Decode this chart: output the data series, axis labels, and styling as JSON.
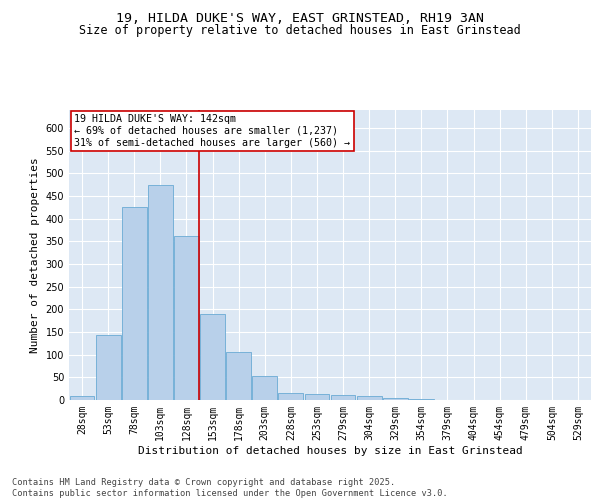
{
  "title_line1": "19, HILDA DUKE'S WAY, EAST GRINSTEAD, RH19 3AN",
  "title_line2": "Size of property relative to detached houses in East Grinstead",
  "xlabel": "Distribution of detached houses by size in East Grinstead",
  "ylabel": "Number of detached properties",
  "bar_labels": [
    "28sqm",
    "53sqm",
    "78sqm",
    "103sqm",
    "128sqm",
    "153sqm",
    "178sqm",
    "203sqm",
    "228sqm",
    "253sqm",
    "279sqm",
    "304sqm",
    "329sqm",
    "354sqm",
    "379sqm",
    "404sqm",
    "454sqm",
    "479sqm",
    "504sqm",
    "529sqm"
  ],
  "bar_values": [
    8,
    143,
    425,
    475,
    362,
    190,
    105,
    53,
    16,
    14,
    11,
    8,
    4,
    3,
    1,
    1,
    0,
    0,
    0,
    0
  ],
  "bar_color": "#b8d0ea",
  "bar_edge_color": "#6aaad4",
  "vline_position": 4.48,
  "vline_color": "#cc0000",
  "annotation_text": "19 HILDA DUKE'S WAY: 142sqm\n← 69% of detached houses are smaller (1,237)\n31% of semi-detached houses are larger (560) →",
  "annotation_box_color": "#ffffff",
  "annotation_box_edge": "#cc0000",
  "ylim": [
    0,
    640
  ],
  "yticks": [
    0,
    50,
    100,
    150,
    200,
    250,
    300,
    350,
    400,
    450,
    500,
    550,
    600
  ],
  "background_color": "#dde8f4",
  "grid_color": "#ffffff",
  "footer_text": "Contains HM Land Registry data © Crown copyright and database right 2025.\nContains public sector information licensed under the Open Government Licence v3.0.",
  "title_fontsize": 9.5,
  "subtitle_fontsize": 8.5,
  "axis_label_fontsize": 8,
  "tick_fontsize": 7,
  "annotation_fontsize": 7.2,
  "footer_fontsize": 6.2
}
